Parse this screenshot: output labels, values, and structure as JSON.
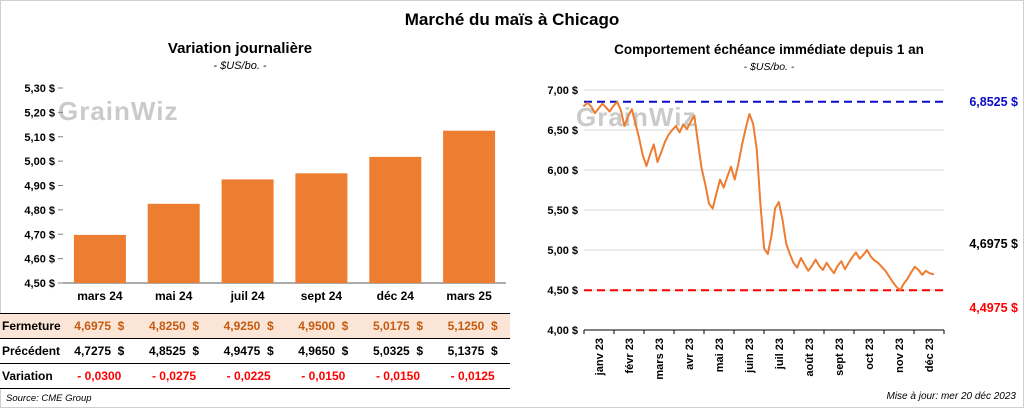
{
  "page_title": "Marché du maïs à Chicago",
  "watermark": "GrainWiz",
  "source": "Source: CME Group",
  "updated": "Mise à jour: mer 20 déc 2023",
  "chart_data": [
    {
      "type": "bar",
      "title": "Variation journalière",
      "subtitle": "- $US/bo. -",
      "categories": [
        "mars 24",
        "mai 24",
        "juil 24",
        "sept 24",
        "déc 24",
        "mars 25"
      ],
      "values": [
        4.6975,
        4.825,
        4.925,
        4.95,
        5.0175,
        5.125
      ],
      "ylim": [
        4.5,
        5.3
      ],
      "y_tick_labels": [
        "5,30 $",
        "5,20 $",
        "5,10 $",
        "5,00 $",
        "4,90 $",
        "4,80 $",
        "4,70 $",
        "4,60 $",
        "4,50 $"
      ],
      "bar_color": "#ED7D31",
      "grid": false,
      "legend": "none"
    },
    {
      "type": "line",
      "title": "Comportement échéance immédiate depuis 1 an",
      "subtitle": "- $US/bo. -",
      "x_labels": [
        "janv 23",
        "févr 23",
        "mars 23",
        "avr 23",
        "mai 23",
        "juin 23",
        "juil 23",
        "août 23",
        "sept 23",
        "oct 23",
        "nov 23",
        "déc 23"
      ],
      "ylim": [
        4.0,
        7.0
      ],
      "y_tick_labels": [
        "7,00 $",
        "6,50 $",
        "6,00 $",
        "5,50 $",
        "5,00 $",
        "4,50 $",
        "4,00 $"
      ],
      "values": [
        6.8,
        6.84,
        6.79,
        6.71,
        6.77,
        6.83,
        6.78,
        6.73,
        6.8,
        6.8525,
        6.75,
        6.55,
        6.67,
        6.76,
        6.58,
        6.4,
        6.18,
        6.05,
        6.2,
        6.32,
        6.1,
        6.22,
        6.35,
        6.44,
        6.5,
        6.55,
        6.47,
        6.57,
        6.51,
        6.6,
        6.68,
        6.35,
        6.02,
        5.82,
        5.58,
        5.52,
        5.7,
        5.88,
        5.78,
        5.92,
        6.04,
        5.88,
        6.08,
        6.32,
        6.52,
        6.7,
        6.58,
        6.25,
        5.58,
        5.02,
        4.95,
        5.18,
        5.52,
        5.6,
        5.38,
        5.08,
        4.95,
        4.84,
        4.78,
        4.9,
        4.82,
        4.74,
        4.8,
        4.88,
        4.8,
        4.75,
        4.84,
        4.77,
        4.71,
        4.8,
        4.86,
        4.76,
        4.84,
        4.91,
        4.97,
        4.89,
        4.94,
        5.0,
        4.92,
        4.87,
        4.84,
        4.79,
        4.74,
        4.67,
        4.6,
        4.54,
        4.4975,
        4.58,
        4.64,
        4.72,
        4.79,
        4.75,
        4.69,
        4.74,
        4.71,
        4.6975
      ],
      "line_color": "#ED7D31",
      "max_line": {
        "value": 6.8525,
        "label": "6,8525 $",
        "color": "#0B0BCB"
      },
      "min_line": {
        "value": 4.4975,
        "label": "4,4975 $",
        "color": "#FF0000"
      },
      "last_point_label": "4,6975 $",
      "grid": true,
      "legend": "none"
    }
  ],
  "table": {
    "rows": [
      {
        "label": "Fermeture",
        "values": [
          "4,6975  $",
          "4,8250  $",
          "4,9250  $",
          "4,9500  $",
          "5,0175  $",
          "5,1250  $"
        ]
      },
      {
        "label": "Précédent",
        "values": [
          "4,7275  $",
          "4,8525  $",
          "4,9475  $",
          "4,9650  $",
          "5,0325  $",
          "5,1375  $"
        ]
      },
      {
        "label": "Variation",
        "values": [
          "- 0,0300",
          "- 0,0275",
          "- 0,0225",
          "- 0,0150",
          "- 0,0150",
          "- 0,0125"
        ]
      }
    ]
  }
}
